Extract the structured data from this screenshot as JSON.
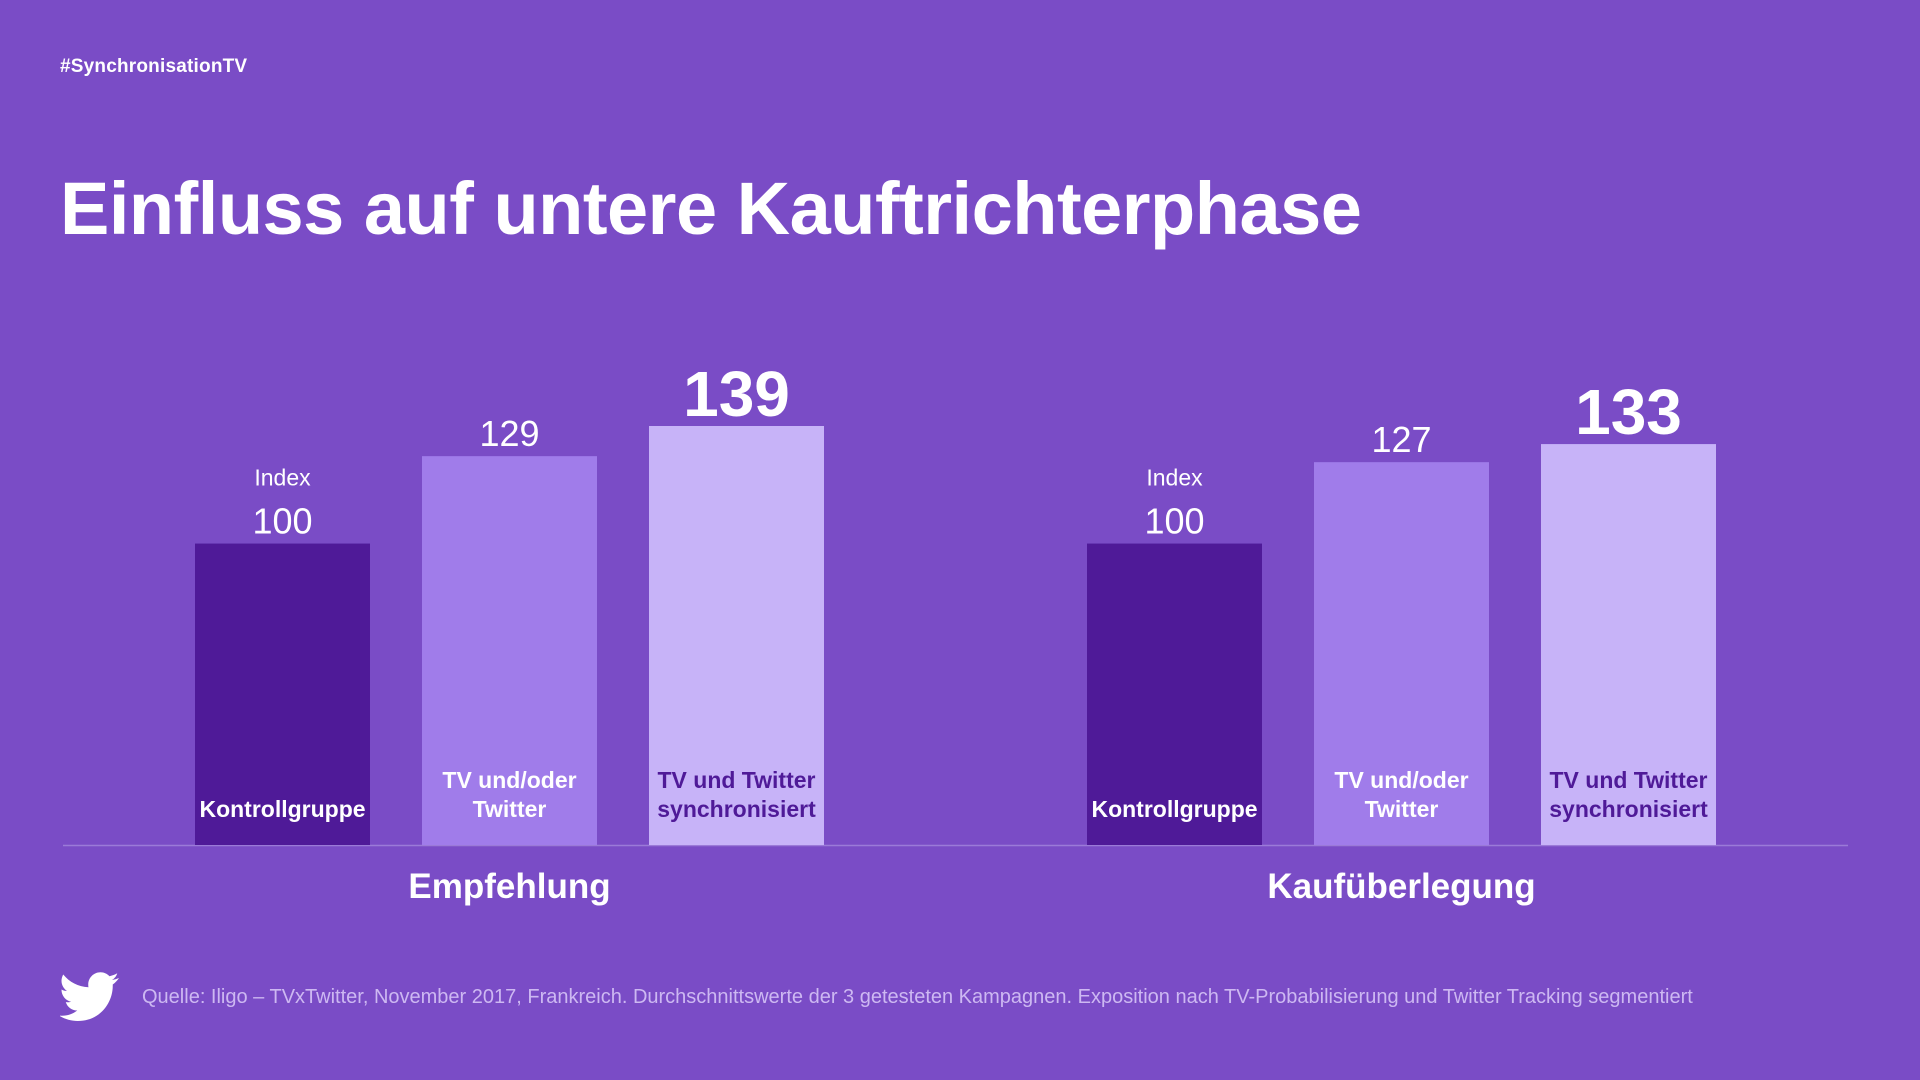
{
  "header": {
    "hashtag": "#SynchronisationTV",
    "title": "Einfluss auf untere Kauftrichterphase"
  },
  "chart_data": {
    "type": "bar",
    "index_label": "Index",
    "grid": false,
    "legend": "none",
    "ylim": [
      0,
      145
    ],
    "groups": [
      {
        "name": "Empfehlung",
        "bars": [
          {
            "label_lines": [
              "Kontrollgruppe"
            ],
            "value": 100,
            "color": "#4f1a98",
            "label_color": "#ffffff",
            "value_emphasis": false,
            "show_index": true
          },
          {
            "label_lines": [
              "TV und/oder",
              "Twitter"
            ],
            "value": 129,
            "color": "#a07cea",
            "label_color": "#ffffff",
            "value_emphasis": false,
            "show_index": false
          },
          {
            "label_lines": [
              "TV und Twitter",
              "synchronisiert"
            ],
            "value": 139,
            "color": "#c7b3f8",
            "label_color": "#4f1a98",
            "value_emphasis": true,
            "show_index": false
          }
        ]
      },
      {
        "name": "Kaufüberlegung",
        "bars": [
          {
            "label_lines": [
              "Kontrollgruppe"
            ],
            "value": 100,
            "color": "#4f1a98",
            "label_color": "#ffffff",
            "value_emphasis": false,
            "show_index": true
          },
          {
            "label_lines": [
              "TV und/oder",
              "Twitter"
            ],
            "value": 127,
            "color": "#a07cea",
            "label_color": "#ffffff",
            "value_emphasis": false,
            "show_index": false
          },
          {
            "label_lines": [
              "TV und Twitter",
              "synchronisiert"
            ],
            "value": 133,
            "color": "#c7b3f8",
            "label_color": "#4f1a98",
            "value_emphasis": true,
            "show_index": false
          }
        ]
      }
    ]
  },
  "footer": {
    "source": "Quelle: Iligo – TVxTwitter, November 2017, Frankreich. Durchschnittswerte der 3 getesteten Kampagnen. Exposition nach TV-Probabilisierung und Twitter Tracking segmentiert",
    "logo_icon": "twitter-bird-icon"
  },
  "colors": {
    "background": "#7a4cc6",
    "text": "#ffffff",
    "baseline": "#9b7ad8",
    "source_text": "#cdb8f2"
  }
}
